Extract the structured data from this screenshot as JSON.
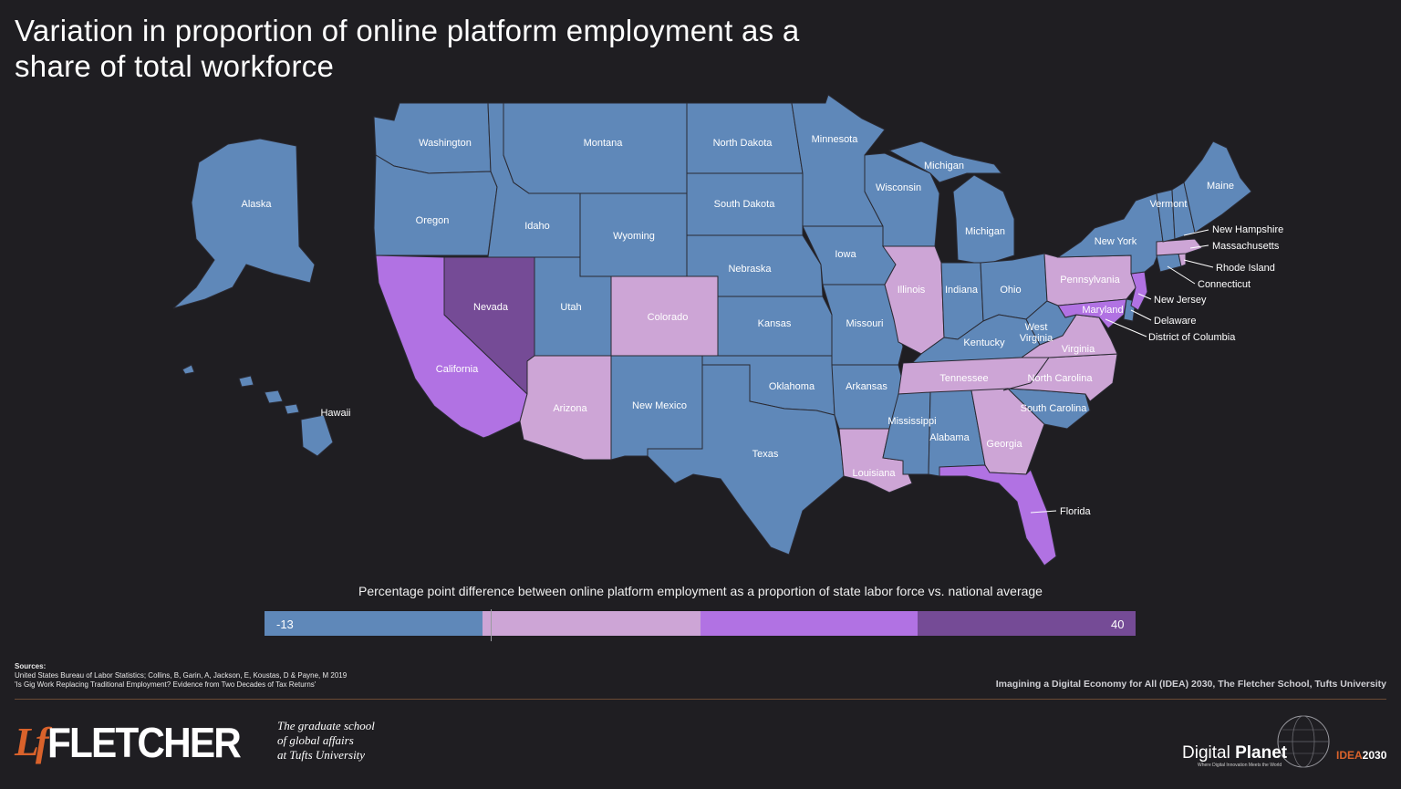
{
  "title": "Variation in proportion of online platform employment as a share of total workforce",
  "colors": {
    "background": "#1f1e22",
    "blue": "#5f88b9",
    "light_pink": "#cda5d6",
    "purple": "#b172e3",
    "dark_purple": "#754b96"
  },
  "states": [
    {
      "name": "Washington",
      "category": "blue"
    },
    {
      "name": "Oregon",
      "category": "blue"
    },
    {
      "name": "California",
      "category": "purple"
    },
    {
      "name": "Nevada",
      "category": "dark_purple"
    },
    {
      "name": "Idaho",
      "category": "blue"
    },
    {
      "name": "Montana",
      "category": "blue"
    },
    {
      "name": "Wyoming",
      "category": "blue"
    },
    {
      "name": "Utah",
      "category": "blue"
    },
    {
      "name": "Arizona",
      "category": "light_pink"
    },
    {
      "name": "Colorado",
      "category": "light_pink"
    },
    {
      "name": "New Mexico",
      "category": "blue"
    },
    {
      "name": "North Dakota",
      "category": "blue"
    },
    {
      "name": "South Dakota",
      "category": "blue"
    },
    {
      "name": "Nebraska",
      "category": "blue"
    },
    {
      "name": "Kansas",
      "category": "blue"
    },
    {
      "name": "Oklahoma",
      "category": "blue"
    },
    {
      "name": "Texas",
      "category": "blue"
    },
    {
      "name": "Minnesota",
      "category": "blue"
    },
    {
      "name": "Iowa",
      "category": "blue"
    },
    {
      "name": "Missouri",
      "category": "blue"
    },
    {
      "name": "Arkansas",
      "category": "blue"
    },
    {
      "name": "Louisiana",
      "category": "light_pink"
    },
    {
      "name": "Wisconsin",
      "category": "blue"
    },
    {
      "name": "Illinois",
      "category": "light_pink"
    },
    {
      "name": "Michigan",
      "category": "blue"
    },
    {
      "name": "Indiana",
      "category": "blue"
    },
    {
      "name": "Ohio",
      "category": "blue"
    },
    {
      "name": "Kentucky",
      "category": "blue"
    },
    {
      "name": "Tennessee",
      "category": "light_pink"
    },
    {
      "name": "Mississippi",
      "category": "blue"
    },
    {
      "name": "Alabama",
      "category": "blue"
    },
    {
      "name": "Georgia",
      "category": "light_pink"
    },
    {
      "name": "Florida",
      "category": "purple"
    },
    {
      "name": "South Carolina",
      "category": "blue"
    },
    {
      "name": "North Carolina",
      "category": "light_pink"
    },
    {
      "name": "Virginia",
      "category": "light_pink"
    },
    {
      "name": "West Virginia",
      "category": "blue"
    },
    {
      "name": "Maryland",
      "category": "purple"
    },
    {
      "name": "Delaware",
      "category": "blue"
    },
    {
      "name": "District of Columbia",
      "category": "purple"
    },
    {
      "name": "Pennsylvania",
      "category": "light_pink"
    },
    {
      "name": "New Jersey",
      "category": "purple"
    },
    {
      "name": "New York",
      "category": "blue"
    },
    {
      "name": "Connecticut",
      "category": "blue"
    },
    {
      "name": "Rhode Island",
      "category": "light_pink"
    },
    {
      "name": "Massachusetts",
      "category": "light_pink"
    },
    {
      "name": "Vermont",
      "category": "blue"
    },
    {
      "name": "New Hampshire",
      "category": "blue"
    },
    {
      "name": "Maine",
      "category": "blue"
    },
    {
      "name": "Alaska",
      "category": "blue"
    },
    {
      "name": "Hawaii",
      "category": "blue"
    }
  ],
  "legend": {
    "title": "Percentage point difference between online platform employment as a proportion of state labor force vs. national average",
    "min": "-13",
    "max": "40"
  },
  "sources": {
    "heading": "Sources:",
    "line1": "United States Bureau of Labor Statistics; Collins, B, Garin, A, Jackson, E, Koustas, D & Payne, M 2019",
    "line2": "'Is Gig Work Replacing Traditional Employment? Evidence from Two Decades of Tax Returns'"
  },
  "credit": "Imagining a Digital Economy for All (IDEA) 2030, The Fletcher School, Tufts University",
  "fletcher": {
    "mark": "Lf",
    "wordmark": "FLETCHER",
    "tagline1": "The graduate school",
    "tagline2": "of global affairs",
    "tagline3": "at Tufts University"
  },
  "digital_planet": {
    "word1": "Digital",
    "word2": "Planet",
    "subtitle": "Where Digital Innovation Meets the World"
  },
  "idea": {
    "part1": "IDEA",
    "part2": "2030"
  }
}
